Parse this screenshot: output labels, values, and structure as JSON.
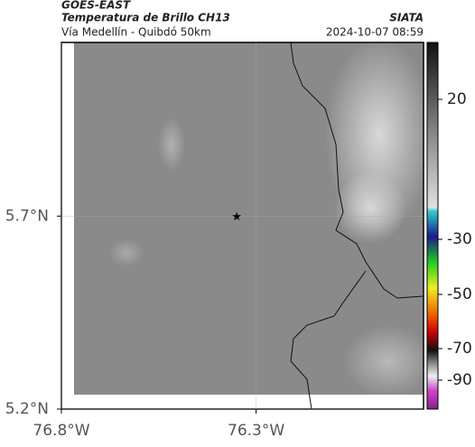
{
  "header": {
    "satellite": "GOES-EAST",
    "product": "Temperatura de Brillo CH13",
    "source": "SIATA",
    "route": "Vía Medellín - Quibdó 50km",
    "datetime": "2024-10-07 08:59"
  },
  "map": {
    "xlim": [
      -76.8,
      -75.87
    ],
    "ylim": [
      5.2,
      6.15
    ],
    "xticks": [
      {
        "value": -76.8,
        "label": "76.8°W"
      },
      {
        "value": -76.3,
        "label": "76.3°W"
      }
    ],
    "yticks": [
      {
        "value": 5.2,
        "label": "5.2°N"
      },
      {
        "value": 5.7,
        "label": "5.7°N"
      }
    ],
    "marker": {
      "lon": -76.35,
      "lat": 5.7
    }
  },
  "colorbar": {
    "ticks": [
      20,
      -30,
      -50,
      -70,
      -90
    ]
  }
}
